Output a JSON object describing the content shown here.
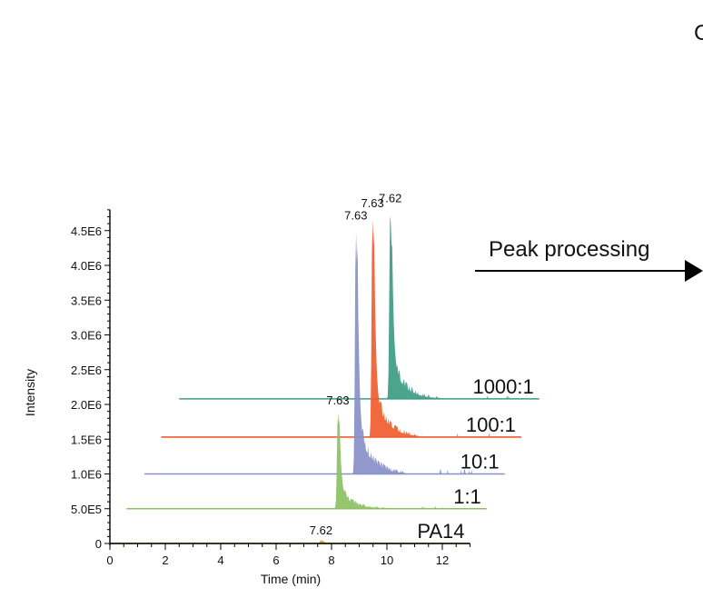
{
  "chart_data": {
    "type": "line",
    "title": "",
    "xlabel": "Time (min)",
    "ylabel": "Intensity",
    "xlim": [
      0,
      13
    ],
    "ylim": [
      0,
      4800000.0
    ],
    "x_ticks": [
      0,
      2,
      4,
      6,
      8,
      10,
      12
    ],
    "x_tick_labels": [
      "0",
      "2",
      "4",
      "6",
      "8",
      "10",
      "12"
    ],
    "y_ticks": [
      0,
      500000,
      1000000,
      1500000,
      2000000,
      2500000,
      3000000,
      3500000,
      4000000,
      4500000
    ],
    "y_tick_labels": [
      "0",
      "5.0E5",
      "1.0E6",
      "1.5E6",
      "2.0E6",
      "2.5E6",
      "3.0E6",
      "3.5E6",
      "4.0E6",
      "4.5E6"
    ],
    "grid": false,
    "legend": "none",
    "offset_layout": "stacked-offset",
    "series": [
      {
        "label": "PA14",
        "color": "#d4a520",
        "offset_x": 0,
        "offset_y": 0,
        "peak_x": 7.62,
        "peak_y": 50000,
        "peak_label": "7.62",
        "x_range": [
          0,
          13
        ]
      },
      {
        "label": "1:1",
        "color": "#8cc063",
        "offset_x": 0.6,
        "offset_y": 500000,
        "peak_x": 7.63,
        "peak_y": 1420000,
        "peak_label": "7.63",
        "x_range": [
          0,
          13
        ]
      },
      {
        "label": "10:1",
        "color": "#8890c8",
        "offset_x": 1.25,
        "offset_y": 1000000,
        "peak_x": 7.63,
        "peak_y": 3580000,
        "peak_label": "7.63",
        "x_range": [
          0,
          13
        ]
      },
      {
        "label": "100:1",
        "color": "#f05c2e",
        "offset_x": 1.85,
        "offset_y": 1530000,
        "peak_x": 7.63,
        "peak_y": 3230000,
        "peak_label": "7.63",
        "x_range": [
          0,
          13
        ]
      },
      {
        "label": "1000:1",
        "color": "#3d9c86",
        "offset_x": 2.5,
        "offset_y": 2080000,
        "peak_x": 7.62,
        "peak_y": 2750000,
        "peak_label": "7.62",
        "x_range": [
          0,
          13
        ]
      }
    ]
  },
  "annotation": {
    "label": "Peak processing",
    "edge_text": "C"
  }
}
